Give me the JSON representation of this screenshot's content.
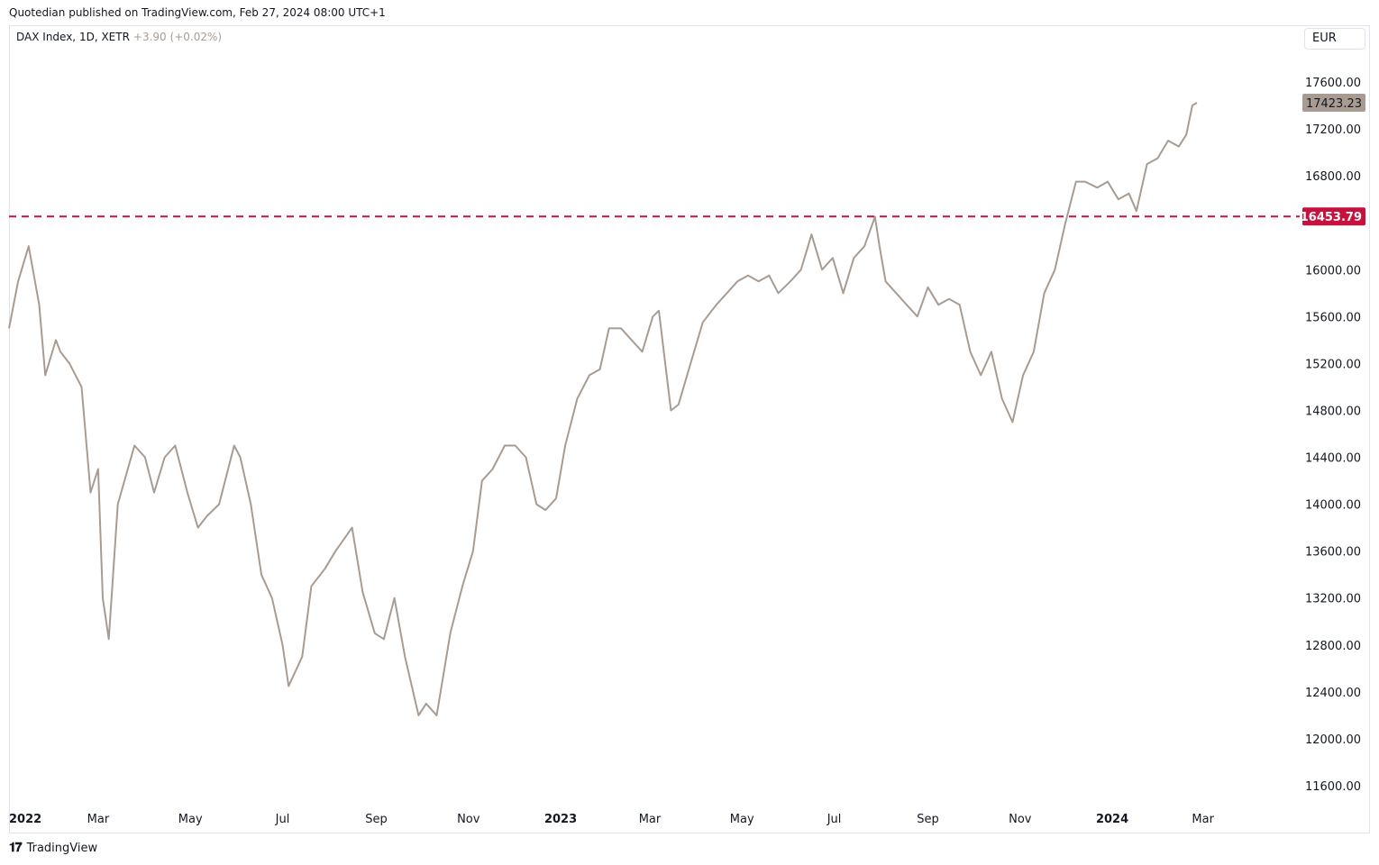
{
  "header": {
    "published": "Quotedian published on TradingView.com, Feb 27, 2024 08:00 UTC+1"
  },
  "legend": {
    "symbol": "DAX Index, 1D, XETR",
    "change": "+3.90 (+0.02%)"
  },
  "currency": "EUR",
  "footer": {
    "brand": "TradingView",
    "icon": "tradingview-logo-icon"
  },
  "colors": {
    "line": "#a89c92",
    "level": "#c8103e",
    "last_price_tag": "#a89c92"
  },
  "chart_data": {
    "type": "line",
    "title": "",
    "series": [
      {
        "name": "DAX Index, 1D, XETR",
        "x": [
          "2022-01-01",
          "2022-01-07",
          "2022-01-14",
          "2022-01-21",
          "2022-01-25",
          "2022-02-01",
          "2022-02-04",
          "2022-02-10",
          "2022-02-18",
          "2022-02-24",
          "2022-03-01",
          "2022-03-04",
          "2022-03-08",
          "2022-03-14",
          "2022-03-25",
          "2022-04-01",
          "2022-04-07",
          "2022-04-14",
          "2022-04-21",
          "2022-04-29",
          "2022-05-06",
          "2022-05-12",
          "2022-05-20",
          "2022-05-30",
          "2022-06-03",
          "2022-06-10",
          "2022-06-17",
          "2022-06-24",
          "2022-07-01",
          "2022-07-05",
          "2022-07-14",
          "2022-07-20",
          "2022-07-29",
          "2022-08-05",
          "2022-08-16",
          "2022-08-23",
          "2022-08-31",
          "2022-09-06",
          "2022-09-13",
          "2022-09-20",
          "2022-09-29",
          "2022-10-04",
          "2022-10-11",
          "2022-10-20",
          "2022-10-28",
          "2022-11-04",
          "2022-11-10",
          "2022-11-17",
          "2022-11-25",
          "2022-12-02",
          "2022-12-09",
          "2022-12-16",
          "2022-12-22",
          "2022-12-29",
          "2023-01-04",
          "2023-01-12",
          "2023-01-20",
          "2023-01-27",
          "2023-02-02",
          "2023-02-10",
          "2023-02-17",
          "2023-02-24",
          "2023-03-03",
          "2023-03-07",
          "2023-03-15",
          "2023-03-20",
          "2023-03-28",
          "2023-04-05",
          "2023-04-14",
          "2023-04-21",
          "2023-04-28",
          "2023-05-05",
          "2023-05-12",
          "2023-05-19",
          "2023-05-25",
          "2023-06-02",
          "2023-06-09",
          "2023-06-16",
          "2023-06-23",
          "2023-06-30",
          "2023-07-07",
          "2023-07-14",
          "2023-07-21",
          "2023-07-28",
          "2023-07-31",
          "2023-08-04",
          "2023-08-11",
          "2023-08-18",
          "2023-08-25",
          "2023-09-01",
          "2023-09-08",
          "2023-09-15",
          "2023-09-22",
          "2023-09-29",
          "2023-10-06",
          "2023-10-13",
          "2023-10-20",
          "2023-10-27",
          "2023-11-03",
          "2023-11-10",
          "2023-11-17",
          "2023-11-24",
          "2023-12-01",
          "2023-12-08",
          "2023-12-14",
          "2023-12-22",
          "2023-12-29",
          "2024-01-05",
          "2024-01-12",
          "2024-01-17",
          "2024-01-24",
          "2024-01-31",
          "2024-02-07",
          "2024-02-14",
          "2024-02-19",
          "2024-02-23",
          "2024-02-26"
        ],
        "y": [
          15500,
          15900,
          16200,
          15700,
          15100,
          15400,
          15300,
          15200,
          15000,
          14100,
          14300,
          13200,
          12850,
          14000,
          14500,
          14400,
          14100,
          14400,
          14500,
          14100,
          13800,
          13900,
          14000,
          14500,
          14400,
          14000,
          13400,
          13200,
          12800,
          12450,
          12700,
          13300,
          13450,
          13600,
          13800,
          13250,
          12900,
          12850,
          13200,
          12700,
          12200,
          12300,
          12200,
          12900,
          13300,
          13600,
          14200,
          14300,
          14500,
          14500,
          14400,
          14000,
          13950,
          14050,
          14500,
          14900,
          15100,
          15150,
          15500,
          15500,
          15400,
          15300,
          15600,
          15650,
          14800,
          14850,
          15200,
          15550,
          15700,
          15800,
          15900,
          15950,
          15900,
          15950,
          15800,
          15900,
          16000,
          16300,
          16000,
          16100,
          15800,
          16100,
          16200,
          16450,
          16200,
          15900,
          15800,
          15700,
          15600,
          15850,
          15700,
          15750,
          15700,
          15300,
          15100,
          15300,
          14900,
          14700,
          15100,
          15300,
          15800,
          16000,
          16400,
          16750,
          16750,
          16700,
          16750,
          16600,
          16650,
          16500,
          16900,
          16950,
          17100,
          17050,
          17150,
          17400,
          17423.23
        ]
      }
    ],
    "y_ticks": [
      "17600.00",
      "17200.00",
      "16800.00",
      "16000.00",
      "15600.00",
      "15200.00",
      "14800.00",
      "14400.00",
      "14000.00",
      "13600.00",
      "13200.00",
      "12800.00",
      "12400.00",
      "12000.00",
      "11600.00"
    ],
    "y_tick_values": [
      17600,
      17200,
      16800,
      16000,
      15600,
      15200,
      14800,
      14400,
      14000,
      13600,
      13200,
      12800,
      12400,
      12000,
      11600
    ],
    "x_ticks": [
      {
        "label": "2022",
        "date": "2022-01-01",
        "bold": true
      },
      {
        "label": "Mar",
        "date": "2022-03-01",
        "bold": false
      },
      {
        "label": "May",
        "date": "2022-05-01",
        "bold": false
      },
      {
        "label": "Jul",
        "date": "2022-07-01",
        "bold": false
      },
      {
        "label": "Sep",
        "date": "2022-09-01",
        "bold": false
      },
      {
        "label": "Nov",
        "date": "2022-11-01",
        "bold": false
      },
      {
        "label": "2023",
        "date": "2023-01-01",
        "bold": true
      },
      {
        "label": "Mar",
        "date": "2023-03-01",
        "bold": false
      },
      {
        "label": "May",
        "date": "2023-05-01",
        "bold": false
      },
      {
        "label": "Jul",
        "date": "2023-07-01",
        "bold": false
      },
      {
        "label": "Sep",
        "date": "2023-09-01",
        "bold": false
      },
      {
        "label": "Nov",
        "date": "2023-11-01",
        "bold": false
      },
      {
        "label": "2024",
        "date": "2024-01-01",
        "bold": true
      },
      {
        "label": "Mar",
        "date": "2024-03-01",
        "bold": false
      }
    ],
    "horizontal_level": {
      "value": 16453.79,
      "label": "16453.79",
      "style": "dashed"
    },
    "last_price": {
      "value": 17423.23,
      "label": "17423.23"
    },
    "ylim": [
      11400,
      17900
    ],
    "xlim": [
      "2022-01-01",
      "2024-05-04"
    ],
    "grid": false,
    "legend_position": "top-left"
  }
}
